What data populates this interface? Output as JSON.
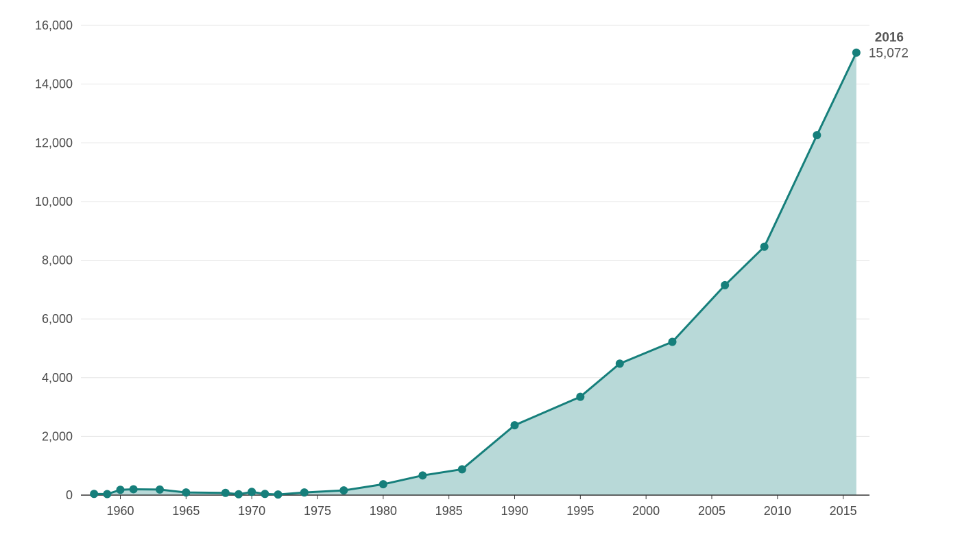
{
  "colors": {
    "line": "#167f7b",
    "area": "#b8d9d8",
    "grid": "#e6e6e6",
    "axis": "#333333",
    "text": "#4a4a4a"
  },
  "chart_data": {
    "type": "area",
    "title": "",
    "xlabel": "",
    "ylabel": "",
    "xlim": [
      1957,
      2017
    ],
    "ylim": [
      0,
      16000
    ],
    "y_ticks": [
      0,
      2000,
      4000,
      6000,
      8000,
      10000,
      12000,
      14000,
      16000
    ],
    "y_tick_labels": [
      "0",
      "2,000",
      "4,000",
      "6,000",
      "8,000",
      "10,000",
      "12,000",
      "14,000",
      "16,000"
    ],
    "x_ticks": [
      1960,
      1965,
      1970,
      1975,
      1980,
      1985,
      1990,
      1995,
      2000,
      2005,
      2010,
      2015
    ],
    "x_tick_labels": [
      "1960",
      "1965",
      "1970",
      "1975",
      "1980",
      "1985",
      "1990",
      "1995",
      "2000",
      "2005",
      "2010",
      "2015"
    ],
    "grid": true,
    "markers": true,
    "series": [
      {
        "x": [
          1958,
          1959,
          1960,
          1961,
          1963,
          1965,
          1968,
          1969,
          1970,
          1971,
          1972,
          1974,
          1977,
          1980,
          1983,
          1986,
          1990,
          1995,
          1998,
          2002,
          2006,
          2009,
          2013,
          2016
        ],
        "y": [
          40,
          35,
          180,
          200,
          190,
          90,
          75,
          30,
          110,
          40,
          20,
          90,
          160,
          370,
          670,
          880,
          2380,
          3350,
          4480,
          5220,
          7150,
          8460,
          12260,
          15072
        ]
      }
    ],
    "annotation": {
      "year": "2016",
      "value": "15,072"
    }
  }
}
